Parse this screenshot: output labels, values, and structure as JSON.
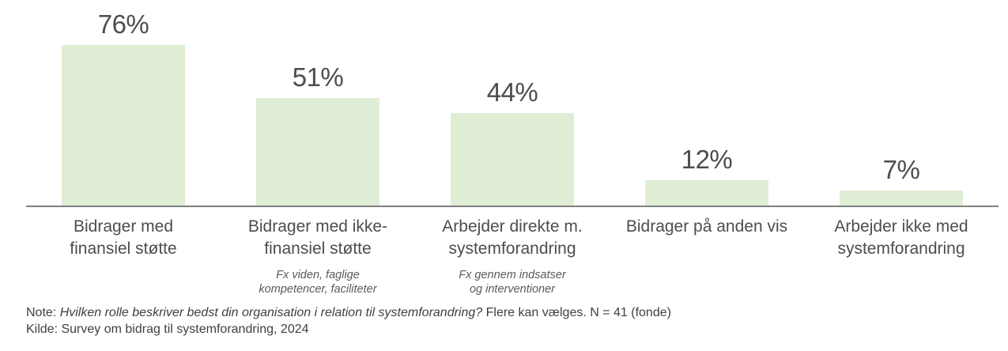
{
  "chart_data": {
    "type": "bar",
    "title": "",
    "xlabel": "",
    "ylabel": "",
    "unit": "%",
    "ylim": [
      0,
      80
    ],
    "grid": false,
    "legend": false,
    "bar_color": "#dfedd5",
    "axis_color": "#7f7f7f",
    "label_color": "#4d4d4d",
    "categories": [
      "Bidrager med finansiel støtte",
      "Bidrager med ikke-finansiel støtte",
      "Arbejder direkte m. systemforandring",
      "Bidrager på anden vis",
      "Arbejder ikke med systemforandring"
    ],
    "values": [
      76,
      51,
      44,
      12,
      7
    ],
    "value_labels": [
      "76%",
      "51%",
      "44%",
      "12%",
      "7%"
    ],
    "category_sublabels": [
      "",
      "Fx viden, faglige kompetencer, faciliteter",
      "Fx gennem indsatser og interventioner",
      "",
      ""
    ]
  },
  "columns": [
    {
      "value_label": "76%",
      "label_lines": [
        "Bidrager med",
        "finansiel støtte"
      ],
      "sub_lines": []
    },
    {
      "value_label": "51%",
      "label_lines": [
        "Bidrager med ikke-",
        "finansiel støtte"
      ],
      "sub_lines": [
        "Fx viden, faglige",
        "kompetencer, faciliteter"
      ]
    },
    {
      "value_label": "44%",
      "label_lines": [
        "Arbejder direkte m.",
        "systemforandring"
      ],
      "sub_lines": [
        "Fx gennem indsatser",
        "og interventioner"
      ]
    },
    {
      "value_label": "12%",
      "label_lines": [
        "Bidrager på anden vis"
      ],
      "sub_lines": []
    },
    {
      "value_label": "7%",
      "label_lines": [
        "Arbejder ikke med",
        "systemforandring"
      ],
      "sub_lines": []
    }
  ],
  "footer": {
    "note_prefix": "Note: ",
    "note_question_italic": "Hvilken rolle beskriver bedst din organisation i relation til systemforandring?",
    "note_rest": " Flere kan vælges. N = 41 (fonde)",
    "source": "Kilde: Survey om bidrag til systemforandring, 2024"
  }
}
